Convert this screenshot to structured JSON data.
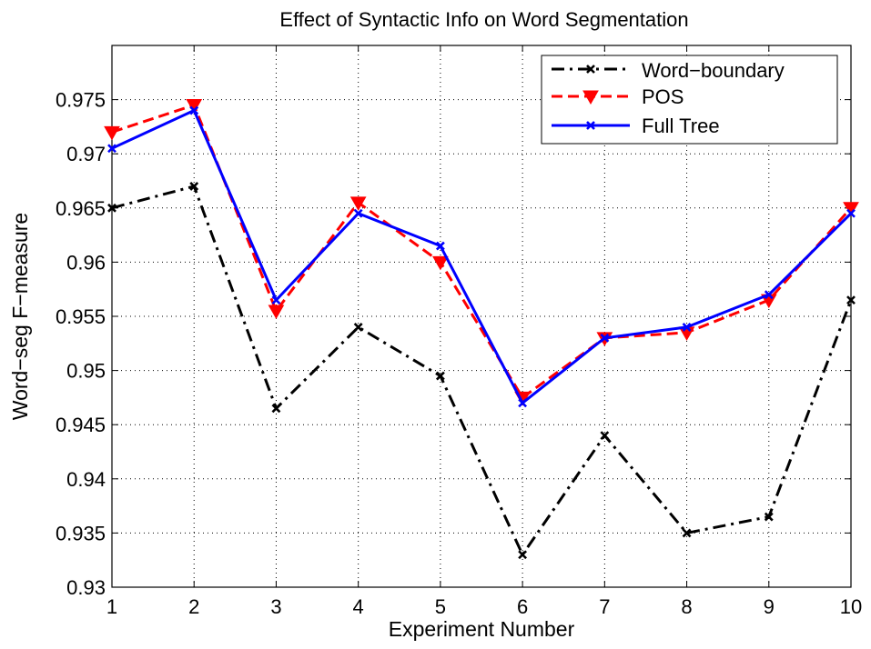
{
  "chart_data": {
    "type": "line",
    "title": "Effect of Syntactic Info on Word Segmentation",
    "xlabel": "Experiment Number",
    "ylabel": "Word−seg F−measure",
    "x": [
      1,
      2,
      3,
      4,
      5,
      6,
      7,
      8,
      9,
      10
    ],
    "xlim": [
      1,
      10
    ],
    "ylim": [
      0.93,
      0.98
    ],
    "xticks": [
      "1",
      "2",
      "3",
      "4",
      "5",
      "6",
      "7",
      "8",
      "9",
      "10"
    ],
    "yticks": [
      "0.93",
      "0.935",
      "0.94",
      "0.945",
      "0.95",
      "0.955",
      "0.96",
      "0.965",
      "0.97",
      "0.975"
    ],
    "grid": true,
    "legend_position": "top-right",
    "series": [
      {
        "name": "Word−boundary",
        "values": [
          0.965,
          0.967,
          0.9465,
          0.954,
          0.9495,
          0.933,
          0.944,
          0.935,
          0.9365,
          0.9565
        ],
        "color": "#000000",
        "line_style": "dash-dot",
        "marker": "x"
      },
      {
        "name": "POS",
        "values": [
          0.972,
          0.9745,
          0.9555,
          0.9655,
          0.96,
          0.9475,
          0.953,
          0.9535,
          0.9565,
          0.965
        ],
        "color": "#ff0000",
        "line_style": "dashed",
        "marker": "triangle-down"
      },
      {
        "name": "Full Tree",
        "values": [
          0.9705,
          0.974,
          0.9565,
          0.9645,
          0.9615,
          0.947,
          0.953,
          0.954,
          0.957,
          0.9645
        ],
        "color": "#0000ff",
        "line_style": "solid",
        "marker": "x"
      }
    ]
  }
}
